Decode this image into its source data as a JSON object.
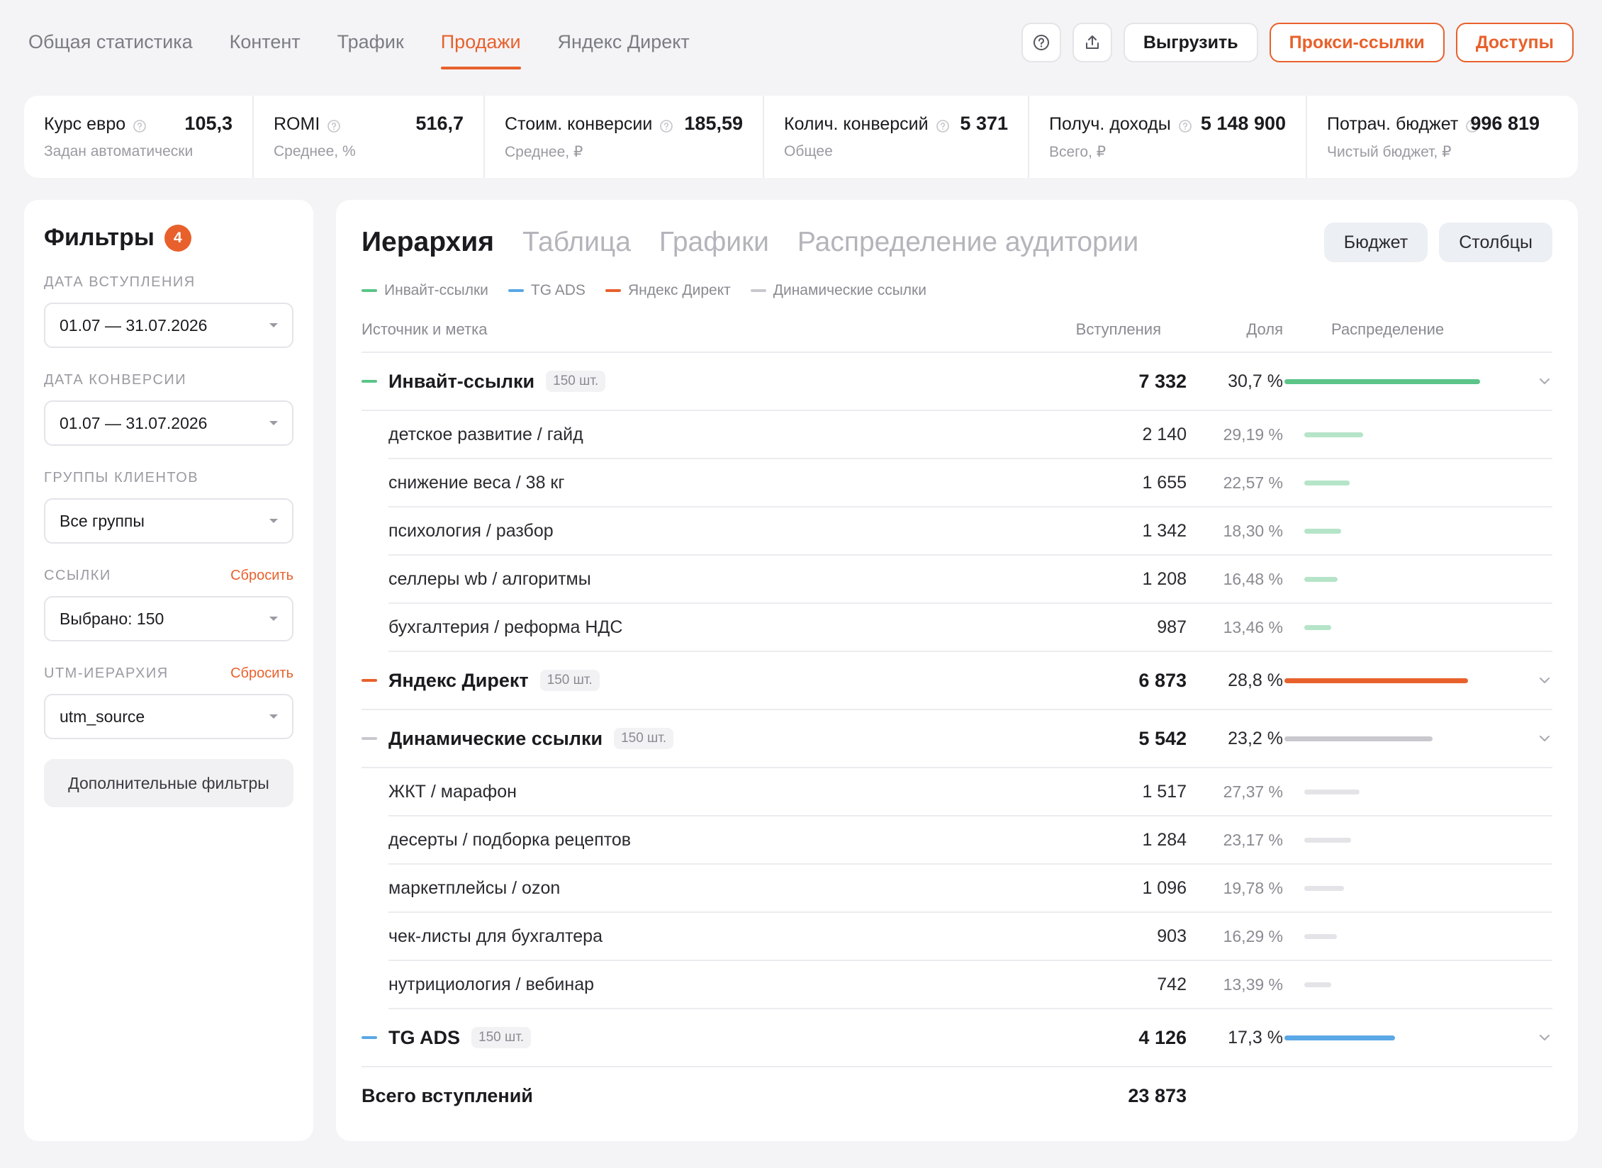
{
  "nav": {
    "tabs": [
      "Общая статистика",
      "Контент",
      "Трафик",
      "Продажи",
      "Яндекс Директ"
    ],
    "active_tab": "Продажи"
  },
  "header_actions": {
    "export_label": "Выгрузить",
    "proxy_links_label": "Прокси-ссылки",
    "access_label": "Доступы",
    "icons": [
      "help-icon",
      "upload-icon"
    ]
  },
  "metrics": [
    {
      "label": "Курс евро",
      "value": "105,3",
      "sub": "Задан автоматически"
    },
    {
      "label": "ROMI",
      "value": "516,7",
      "sub": "Среднее, %"
    },
    {
      "label": "Стоим. конверсии",
      "value": "185,59",
      "sub": "Среднее, ₽"
    },
    {
      "label": "Колич. конверсий",
      "value": "5 371",
      "sub": "Общее"
    },
    {
      "label": "Получ. доходы",
      "value": "5 148 900",
      "sub": "Всего, ₽"
    },
    {
      "label": "Потрач. бюджет",
      "value": "996 819",
      "sub": "Чистый бюджет, ₽"
    }
  ],
  "filters": {
    "title": "Фильтры",
    "badge": "4",
    "groups": [
      {
        "label": "ДАТА ВСТУПЛЕНИЯ",
        "value": "01.07 — 31.07.2026",
        "reset": ""
      },
      {
        "label": "ДАТА КОНВЕРСИИ",
        "value": "01.07 — 31.07.2026",
        "reset": ""
      },
      {
        "label": "ГРУППЫ КЛИЕНТОВ",
        "value": "Все группы",
        "reset": ""
      },
      {
        "label": "ССЫЛКИ",
        "value": "Выбрано: 150",
        "reset": "Сбросить"
      },
      {
        "label": "UTM-ИЕРАРХИЯ",
        "value": "utm_source",
        "reset": "Сбросить"
      }
    ],
    "extra_button": "Дополнительные фильтры"
  },
  "main": {
    "tabs": [
      "Иерархия",
      "Таблица",
      "Графики",
      "Распределение аудитории"
    ],
    "active_tab": "Иерархия",
    "budget_button": "Бюджет",
    "columns_button": "Столбцы",
    "legend": [
      {
        "label": "Инвайт-ссылки",
        "color": "#5cc489"
      },
      {
        "label": "TG ADS",
        "color": "#5aa8e6"
      },
      {
        "label": "Яндекс Директ",
        "color": "#e8612c"
      },
      {
        "label": "Динамические ссылки",
        "color": "#c8c8ce"
      }
    ],
    "columns": {
      "source": "Источник и метка",
      "joins": "Вступления",
      "share": "Доля",
      "distribution": "Распределение"
    },
    "groups": [
      {
        "name": "Инвайт-ссылки",
        "count": "150 шт.",
        "joins": "7 332",
        "share": "30,7 %",
        "share_value": 30.7,
        "color": "#5cc489",
        "child_color": "#b5e4c8",
        "children": [
          {
            "name": "детское развитие / гайд",
            "joins": "2 140",
            "share": "29,19 %",
            "share_value": 29.19
          },
          {
            "name": "снижение веса / 38 кг",
            "joins": "1 655",
            "share": "22,57 %",
            "share_value": 22.57
          },
          {
            "name": "психология / разбор",
            "joins": "1 342",
            "share": "18,30 %",
            "share_value": 18.3
          },
          {
            "name": "селлеры wb / алгоритмы",
            "joins": "1 208",
            "share": "16,48 %",
            "share_value": 16.48
          },
          {
            "name": "бухгалтерия / реформа НДС",
            "joins": "987",
            "share": "13,46 %",
            "share_value": 13.46
          }
        ]
      },
      {
        "name": "Яндекс Директ",
        "count": "150 шт.",
        "joins": "6 873",
        "share": "28,8 %",
        "share_value": 28.8,
        "color": "#e8612c",
        "child_color": "#f5c2ad",
        "children": []
      },
      {
        "name": "Динамические ссылки",
        "count": "150 шт.",
        "joins": "5 542",
        "share": "23,2 %",
        "share_value": 23.2,
        "color": "#c8c8ce",
        "child_color": "#e4e4e8",
        "children": [
          {
            "name": "ЖКТ / марафон",
            "joins": "1 517",
            "share": "27,37 %",
            "share_value": 27.37
          },
          {
            "name": "десерты / подборка рецептов",
            "joins": "1 284",
            "share": "23,17 %",
            "share_value": 23.17
          },
          {
            "name": "маркетплейсы / ozon",
            "joins": "1 096",
            "share": "19,78 %",
            "share_value": 19.78
          },
          {
            "name": "чек-листы для бухгалтера",
            "joins": "903",
            "share": "16,29 %",
            "share_value": 16.29
          },
          {
            "name": "нутрициология / вебинар",
            "joins": "742",
            "share": "13,39 %",
            "share_value": 13.39
          }
        ]
      },
      {
        "name": "TG ADS",
        "count": "150 шт.",
        "joins": "4 126",
        "share": "17,3 %",
        "share_value": 17.3,
        "color": "#5aa8e6",
        "child_color": "#b9dbf5",
        "children": []
      }
    ],
    "total_label": "Всего вступлений",
    "total_value": "23 873"
  }
}
